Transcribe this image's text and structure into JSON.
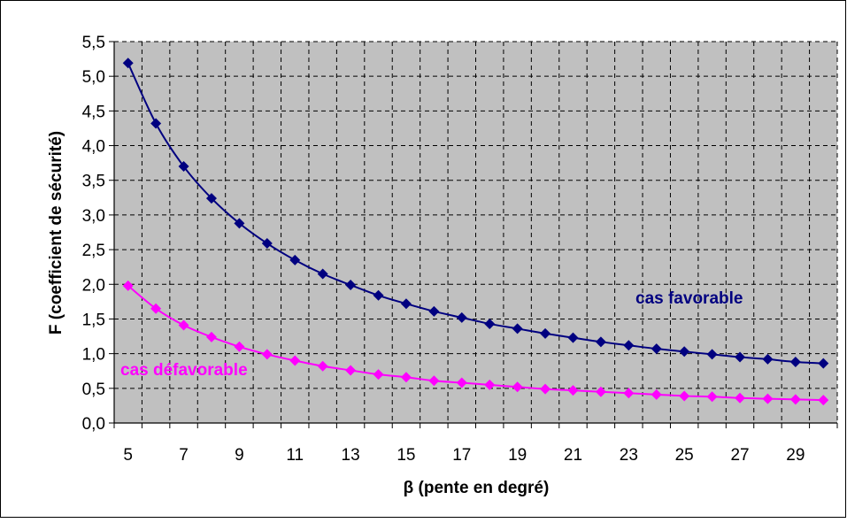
{
  "chart_data": {
    "type": "line",
    "title": "",
    "xlabel": "β (pente en degré)",
    "ylabel": "F (coefficient de sécurité)",
    "xlim": [
      4.5,
      30.5
    ],
    "ylim": [
      0,
      5.5
    ],
    "x_ticks": [
      5,
      7,
      9,
      11,
      13,
      15,
      17,
      19,
      21,
      23,
      25,
      27,
      29
    ],
    "y_ticks": [
      "0,0",
      "0,5",
      "1,0",
      "1,5",
      "2,0",
      "2,5",
      "3,0",
      "3,5",
      "4,0",
      "4,5",
      "5,0",
      "5,5"
    ],
    "grid": true,
    "plot_background": "#c0c0c0",
    "x": [
      5,
      6,
      7,
      8,
      9,
      10,
      11,
      12,
      13,
      14,
      15,
      16,
      17,
      18,
      19,
      20,
      21,
      22,
      23,
      24,
      25,
      26,
      27,
      28,
      29,
      30
    ],
    "series": [
      {
        "name": "cas favorable",
        "color": "#000080",
        "values": [
          5.19,
          4.32,
          3.7,
          3.24,
          2.88,
          2.59,
          2.35,
          2.15,
          1.99,
          1.84,
          1.72,
          1.61,
          1.52,
          1.43,
          1.36,
          1.29,
          1.23,
          1.17,
          1.12,
          1.07,
          1.03,
          0.99,
          0.95,
          0.92,
          0.88,
          0.86
        ]
      },
      {
        "name": "cas défavorable",
        "color": "#ff00ff",
        "values": [
          1.98,
          1.65,
          1.41,
          1.24,
          1.1,
          0.99,
          0.9,
          0.82,
          0.76,
          0.7,
          0.66,
          0.61,
          0.58,
          0.55,
          0.52,
          0.49,
          0.47,
          0.45,
          0.43,
          0.41,
          0.39,
          0.38,
          0.36,
          0.35,
          0.34,
          0.33
        ]
      }
    ]
  }
}
